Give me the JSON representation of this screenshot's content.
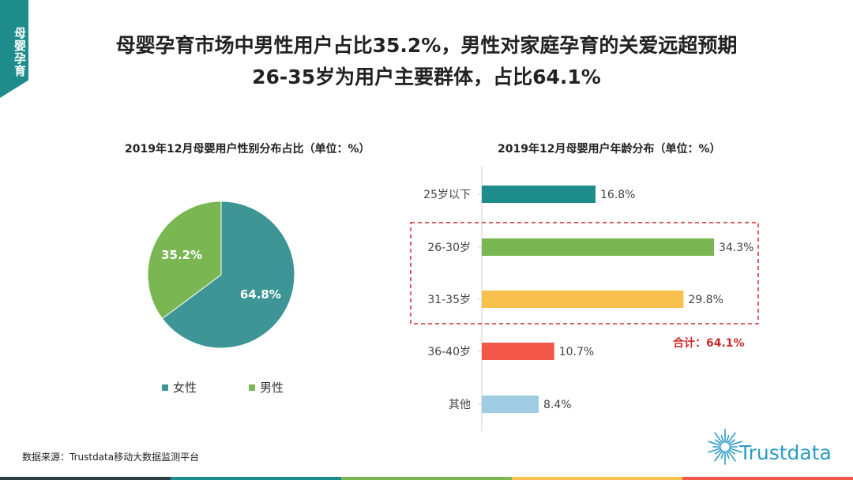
{
  "corner_tab": "母婴孕育",
  "title_line1": "母婴孕育市场中男性用户占比35.2%，男性对家庭孕育的关爱远超预期",
  "title_line2": "26-35岁为用户主要群体，占比64.1%",
  "source": "数据来源：Trustdata移动大数据监测平台",
  "logo_text": "Trustdata",
  "colors": {
    "teal": "#3d9595",
    "green": "#7ab651",
    "yellow": "#f8c04c",
    "red": "#f3574a",
    "lightblue": "#9fcbe3",
    "highlight": "#cc2a2a",
    "strip": [
      "#2f3e46",
      "#1f8c8c",
      "#7ab651",
      "#f8c04c",
      "#f3574a"
    ]
  },
  "chart_data": [
    {
      "type": "pie",
      "title": "2019年12月母婴用户性别分布占比（单位：%）",
      "series": [
        {
          "name": "女性",
          "value": 64.8,
          "label": "64.8%",
          "color": "#3d9595"
        },
        {
          "name": "男性",
          "value": 35.2,
          "label": "35.2%",
          "color": "#7ab651"
        }
      ],
      "legend": "bottom"
    },
    {
      "type": "bar",
      "orientation": "horizontal",
      "title": "2019年12月母婴用户年龄分布（单位：%）",
      "categories": [
        "25岁以下",
        "26-30岁",
        "31-35岁",
        "36-40岁",
        "其他"
      ],
      "values": [
        16.8,
        34.3,
        29.8,
        10.7,
        8.4
      ],
      "labels": [
        "16.8%",
        "34.3%",
        "29.8%",
        "10.7%",
        "8.4%"
      ],
      "colors": [
        "#1f8c8c",
        "#7ab651",
        "#f8c04c",
        "#f3574a",
        "#9fcbe3"
      ],
      "annotation": "合计：64.1%"
    }
  ]
}
